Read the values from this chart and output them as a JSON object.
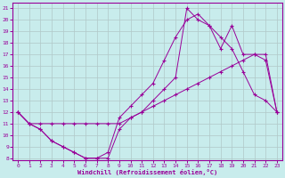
{
  "xlabel": "Windchill (Refroidissement éolien,°C)",
  "bg_color": "#c8ecec",
  "line_color": "#990099",
  "grid_color": "#b0c8c8",
  "xlim": [
    -0.5,
    23.5
  ],
  "ylim": [
    7.8,
    21.5
  ],
  "yticks": [
    8,
    9,
    10,
    11,
    12,
    13,
    14,
    15,
    16,
    17,
    18,
    19,
    20,
    21
  ],
  "xticks": [
    0,
    1,
    2,
    3,
    4,
    5,
    6,
    7,
    8,
    9,
    10,
    11,
    12,
    13,
    14,
    15,
    16,
    17,
    18,
    19,
    20,
    21,
    22,
    23
  ],
  "line1_x": [
    0,
    1,
    2,
    3,
    4,
    5,
    6,
    7,
    8,
    9,
    10,
    11,
    12,
    13,
    14,
    15,
    16,
    17,
    18,
    19,
    20,
    21,
    22,
    23
  ],
  "line1_y": [
    12,
    11,
    10.5,
    9.5,
    9,
    8.5,
    8,
    8,
    8.5,
    11.5,
    12.5,
    13.5,
    14.5,
    16.5,
    18.5,
    20,
    20.5,
    19.5,
    18.5,
    17.5,
    15.5,
    13.5,
    13,
    12
  ],
  "line2_x": [
    0,
    1,
    2,
    3,
    4,
    5,
    6,
    7,
    8,
    9,
    10,
    11,
    12,
    13,
    14,
    15,
    16,
    17,
    18,
    19,
    20,
    21,
    22,
    23
  ],
  "line2_y": [
    12,
    11,
    11,
    11,
    11,
    11,
    11,
    11,
    11,
    11,
    11.5,
    12,
    12.5,
    13,
    13.5,
    14,
    14.5,
    15,
    15.5,
    16,
    16.5,
    17,
    17,
    12
  ],
  "line3_x": [
    0,
    1,
    2,
    3,
    4,
    5,
    6,
    7,
    8,
    9,
    10,
    11,
    12,
    13,
    14,
    15,
    16,
    17,
    18,
    19,
    20,
    21,
    22,
    23
  ],
  "line3_y": [
    12,
    11,
    10.5,
    9.5,
    9,
    8.5,
    8,
    8,
    8,
    10.5,
    11.5,
    12,
    13,
    14,
    15,
    21,
    20,
    19.5,
    17.5,
    19.5,
    17,
    17,
    16.5,
    12
  ]
}
